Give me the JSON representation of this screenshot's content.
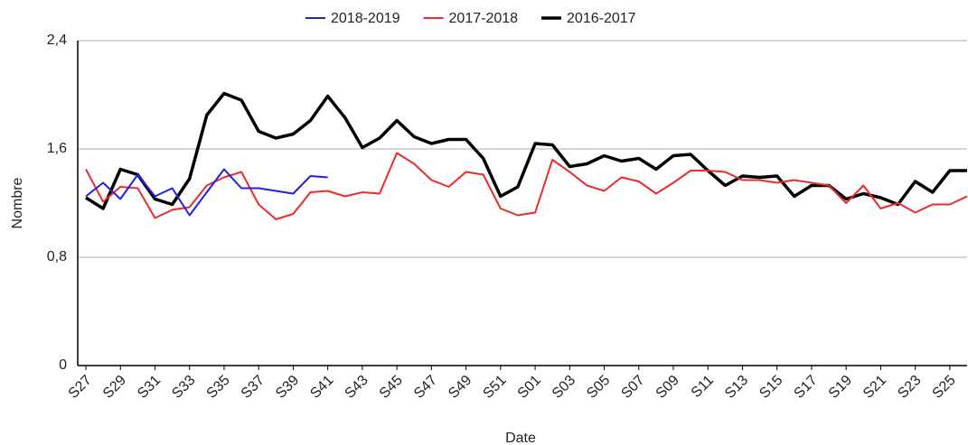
{
  "chart_data": {
    "type": "line",
    "x_label": "Date",
    "y_label": "Nombre",
    "categories": [
      "S27",
      null,
      "S29",
      null,
      "S31",
      null,
      "S33",
      null,
      "S35",
      null,
      "S37",
      null,
      "S39",
      null,
      "S41",
      null,
      "S43",
      null,
      "S45",
      null,
      "S47",
      null,
      "S49",
      null,
      "S51",
      null,
      "S01",
      null,
      "S03",
      null,
      "S05",
      null,
      "S07",
      null,
      "S09",
      null,
      "S11",
      null,
      "S13",
      null,
      "S15",
      null,
      "S17",
      null,
      "S19",
      null,
      "S21",
      null,
      "S23",
      null,
      "S25",
      null
    ],
    "series": [
      {
        "name": "2018-2019",
        "color": "#2222dd",
        "width": 2,
        "values": [
          1.25,
          1.35,
          1.23,
          1.41,
          1.25,
          1.31,
          1.11,
          1.28,
          1.45,
          1.31,
          1.31,
          1.29,
          1.27,
          1.4,
          1.39,
          null,
          null,
          null,
          null,
          null,
          null,
          null,
          null,
          null,
          null,
          null,
          null,
          null,
          null,
          null,
          null,
          null,
          null,
          null,
          null,
          null,
          null,
          null,
          null,
          null,
          null,
          null,
          null,
          null,
          null,
          null,
          null,
          null,
          null,
          null,
          null,
          null
        ]
      },
      {
        "name": "2017-2018",
        "color": "#ee2b2b",
        "width": 2,
        "values": [
          1.45,
          1.21,
          1.32,
          1.31,
          1.09,
          1.15,
          1.17,
          1.33,
          1.39,
          1.43,
          1.19,
          1.08,
          1.12,
          1.28,
          1.29,
          1.25,
          1.28,
          1.27,
          1.57,
          1.49,
          1.37,
          1.32,
          1.43,
          1.41,
          1.16,
          1.11,
          1.13,
          1.52,
          1.43,
          1.33,
          1.29,
          1.39,
          1.36,
          1.27,
          1.35,
          1.44,
          1.44,
          1.43,
          1.37,
          1.37,
          1.35,
          1.37,
          1.35,
          1.33,
          1.2,
          1.33,
          1.16,
          1.2,
          1.13,
          1.19,
          1.19,
          1.25
        ]
      },
      {
        "name": "2016-2017",
        "color": "#000000",
        "width": 3.5,
        "values": [
          1.24,
          1.16,
          1.45,
          1.41,
          1.23,
          1.19,
          1.38,
          1.85,
          2.01,
          1.96,
          1.73,
          1.68,
          1.71,
          1.81,
          1.99,
          1.83,
          1.61,
          1.68,
          1.81,
          1.69,
          1.64,
          1.67,
          1.67,
          1.53,
          1.25,
          1.32,
          1.64,
          1.63,
          1.47,
          1.49,
          1.55,
          1.51,
          1.53,
          1.45,
          1.55,
          1.56,
          1.44,
          1.33,
          1.4,
          1.39,
          1.4,
          1.25,
          1.33,
          1.33,
          1.23,
          1.27,
          1.24,
          1.19,
          1.36,
          1.28,
          1.44,
          1.44
        ]
      }
    ],
    "ylim": [
      0,
      2.4
    ],
    "yticks": [
      0,
      {
        "value": 0.8,
        "label": "0,8"
      },
      {
        "value": 1.6,
        "label": "1,6"
      },
      {
        "value": 2.4,
        "label": "2,4"
      }
    ],
    "grid": true,
    "legend": "top"
  }
}
